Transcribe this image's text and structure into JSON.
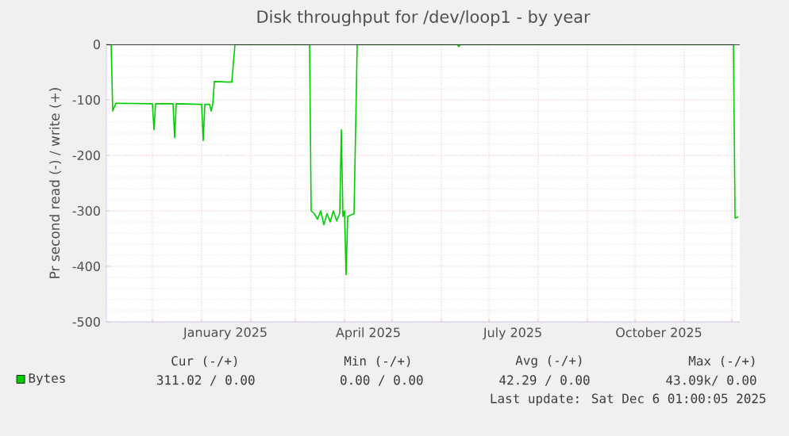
{
  "chart_data": {
    "type": "line",
    "title": "Disk throughput for /dev/loop1 - by year",
    "ylabel": "Pr second read (-) / write (+)",
    "xlim": [
      "2024-11-02",
      "2025-12-06"
    ],
    "ylim": [
      -500,
      0
    ],
    "yticks": [
      -500,
      -400,
      -300,
      -200,
      -100,
      0
    ],
    "xticks": [
      {
        "value": "2024-12-01",
        "label": null
      },
      {
        "value": "2025-01-01",
        "label": null
      },
      {
        "value": "2025-01-16",
        "label": "January 2025"
      },
      {
        "value": "2025-02-01",
        "label": null
      },
      {
        "value": "2025-03-01",
        "label": null
      },
      {
        "value": "2025-04-01",
        "label": null
      },
      {
        "value": "2025-04-16",
        "label": "April 2025"
      },
      {
        "value": "2025-05-01",
        "label": null
      },
      {
        "value": "2025-06-01",
        "label": null
      },
      {
        "value": "2025-07-01",
        "label": null
      },
      {
        "value": "2025-07-16",
        "label": "July 2025"
      },
      {
        "value": "2025-08-01",
        "label": null
      },
      {
        "value": "2025-09-01",
        "label": null
      },
      {
        "value": "2025-10-01",
        "label": null
      },
      {
        "value": "2025-10-16",
        "label": "October 2025"
      },
      {
        "value": "2025-11-01",
        "label": null
      },
      {
        "value": "2025-12-01",
        "label": null
      }
    ],
    "grid": true,
    "legend": "bottom",
    "ref_lines": [
      {
        "axis": "y",
        "value": 0,
        "color": "#000000"
      }
    ],
    "series": [
      {
        "name": "Bytes",
        "color": "#00cc00",
        "x": [
          "2024-11-02",
          "2024-11-05",
          "2024-11-06",
          "2024-11-08",
          "2024-12-01",
          "2024-12-02",
          "2024-12-03",
          "2024-12-14",
          "2024-12-15",
          "2024-12-16",
          "2025-01-01",
          "2025-01-02",
          "2025-01-03",
          "2025-01-06",
          "2025-01-07",
          "2025-01-08",
          "2025-01-09",
          "2025-01-20",
          "2025-01-22",
          "2025-03-10",
          "2025-03-11",
          "2025-03-13",
          "2025-03-15",
          "2025-03-17",
          "2025-03-19",
          "2025-03-21",
          "2025-03-23",
          "2025-03-25",
          "2025-03-27",
          "2025-03-29",
          "2025-03-30",
          "2025-03-31",
          "2025-04-01",
          "2025-04-02",
          "2025-04-03",
          "2025-04-07",
          "2025-04-09",
          "2025-06-11",
          "2025-06-12",
          "2025-06-13",
          "2025-12-02",
          "2025-12-03",
          "2025-12-05"
        ],
        "values": [
          0,
          0,
          -120,
          -106,
          -107,
          -154,
          -107,
          -107,
          -168,
          -107,
          -108,
          -173,
          -108,
          -108,
          -120,
          -108,
          -67,
          -68,
          0,
          0,
          -300,
          -305,
          -315,
          -300,
          -325,
          -305,
          -320,
          -300,
          -318,
          -305,
          -154,
          -310,
          -300,
          -415,
          -310,
          -305,
          0,
          0,
          -4,
          0,
          0,
          -313,
          -311
        ]
      }
    ],
    "annotations": [
      "Cur (-/+)",
      "Min (-/+)",
      "Avg (-/+)",
      "Max (-/+)",
      "311.02 / 0.00",
      "0.00 / 0.00",
      "42.29 / 0.00",
      "43.09k/ 0.00",
      "Last update: Sat Dec 6 01:00:05 2025"
    ]
  }
}
